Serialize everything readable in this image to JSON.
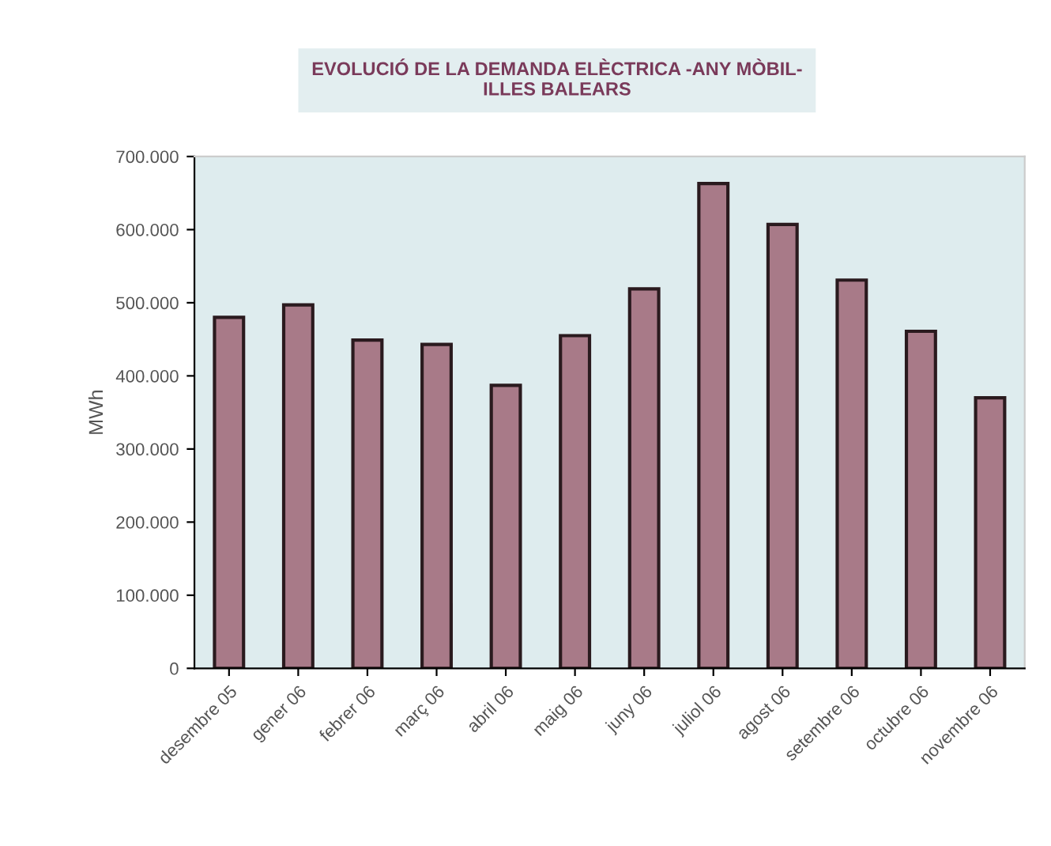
{
  "chart_data": {
    "type": "bar",
    "title": "EVOLUCIÓ DE LA DEMANDA ELÈCTRICA -ANY MÒBIL-\nILLES BALEARS",
    "ylabel": "MWh",
    "categories": [
      "desembre 05",
      "gener 06",
      "febrer 06",
      "març 06",
      "abril 06",
      "maig 06",
      "juny 06",
      "juliol 06",
      "agost 06",
      "setembre 06",
      "octubre 06",
      "novembre 06"
    ],
    "values": [
      480000,
      497000,
      449000,
      443000,
      387000,
      455000,
      519000,
      663000,
      607000,
      531000,
      461000,
      370000
    ],
    "color": "#a87a88",
    "ylim": [
      0,
      700000
    ],
    "yticks": [
      0,
      {
        "value": 100000,
        "label": "100.000"
      },
      {
        "value": 200000,
        "label": "200.000"
      },
      {
        "value": 300000,
        "label": "300.000"
      },
      {
        "value": 400000,
        "label": "400.000"
      },
      {
        "value": 500000,
        "label": "500.000"
      },
      {
        "value": 600000,
        "label": "600.000"
      },
      {
        "value": 700000,
        "label": "700.000"
      }
    ],
    "grid": false,
    "legend": false
  }
}
